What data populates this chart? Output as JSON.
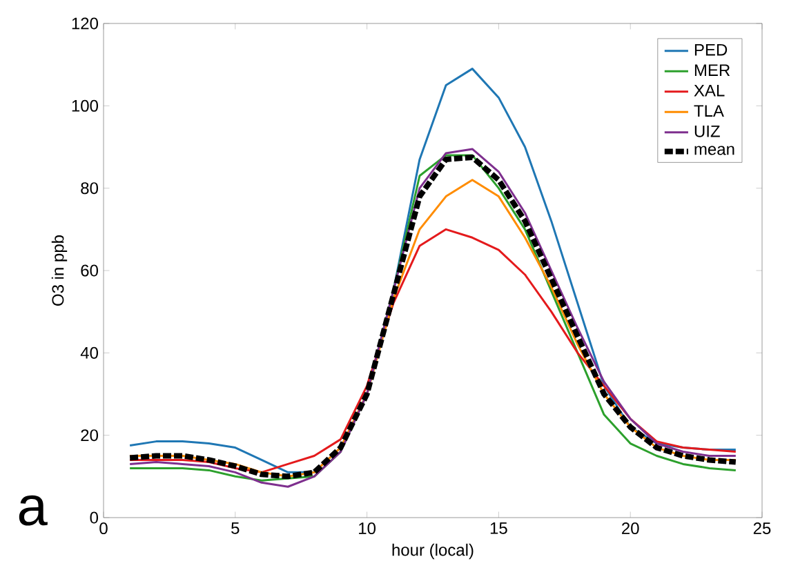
{
  "chart_data": {
    "type": "line",
    "xlabel": "hour (local)",
    "ylabel": "O3 in ppb",
    "x": [
      1,
      2,
      3,
      4,
      5,
      6,
      7,
      8,
      9,
      10,
      11,
      12,
      13,
      14,
      15,
      16,
      17,
      18,
      19,
      20,
      21,
      22,
      23,
      24
    ],
    "xlim": [
      0,
      25
    ],
    "xticks": [
      0,
      5,
      10,
      15,
      20,
      25
    ],
    "ylim": [
      0,
      120
    ],
    "yticks": [
      0,
      20,
      40,
      60,
      80,
      100,
      120
    ],
    "grid": false,
    "legend": "top right",
    "marker": "none",
    "annotations": [
      "a"
    ],
    "series": [
      {
        "name": "PED",
        "color": "#1f77b4",
        "values": [
          17.5,
          18.5,
          18.5,
          18,
          17,
          14,
          11,
          11,
          17,
          30,
          55,
          87,
          105,
          109,
          102,
          90,
          72,
          52,
          32,
          22,
          18,
          17,
          16.5,
          16.5
        ]
      },
      {
        "name": "MER",
        "color": "#2ca02c",
        "values": [
          12,
          12,
          12,
          11.5,
          10,
          9,
          9.5,
          10,
          16,
          30,
          55,
          83,
          88,
          88,
          80,
          70,
          55,
          40,
          25,
          18,
          15,
          13,
          12,
          11.5
        ]
      },
      {
        "name": "XAL",
        "color": "#e41a1c",
        "values": [
          14,
          14,
          14,
          13.5,
          12,
          11,
          13,
          15,
          19,
          32,
          52,
          66,
          70,
          68,
          65,
          59,
          50,
          40,
          32,
          24,
          18.5,
          17,
          16.5,
          16
        ]
      },
      {
        "name": "TLA",
        "color": "#ff8c00",
        "values": [
          15,
          15,
          15,
          14,
          13,
          11,
          10,
          11,
          17,
          30,
          53,
          70,
          78,
          82,
          78,
          68,
          56,
          42,
          30,
          22,
          17,
          15,
          14,
          14
        ]
      },
      {
        "name": "UIZ",
        "color": "#7e2f8e",
        "values": [
          13,
          13.5,
          13,
          12.5,
          11,
          8.5,
          7.5,
          10,
          16,
          30,
          55,
          80,
          88.5,
          89.5,
          84,
          74,
          60,
          46,
          33,
          24,
          18,
          16,
          15,
          15
        ]
      },
      {
        "name": "mean",
        "color": "#000000",
        "line_style": "dashed",
        "values": [
          14.5,
          15,
          15,
          14,
          12.5,
          10.5,
          10,
          11,
          17,
          30,
          54,
          78,
          87,
          87.5,
          82,
          72,
          58,
          44,
          30,
          22,
          17,
          15,
          14,
          13.5
        ]
      }
    ]
  }
}
